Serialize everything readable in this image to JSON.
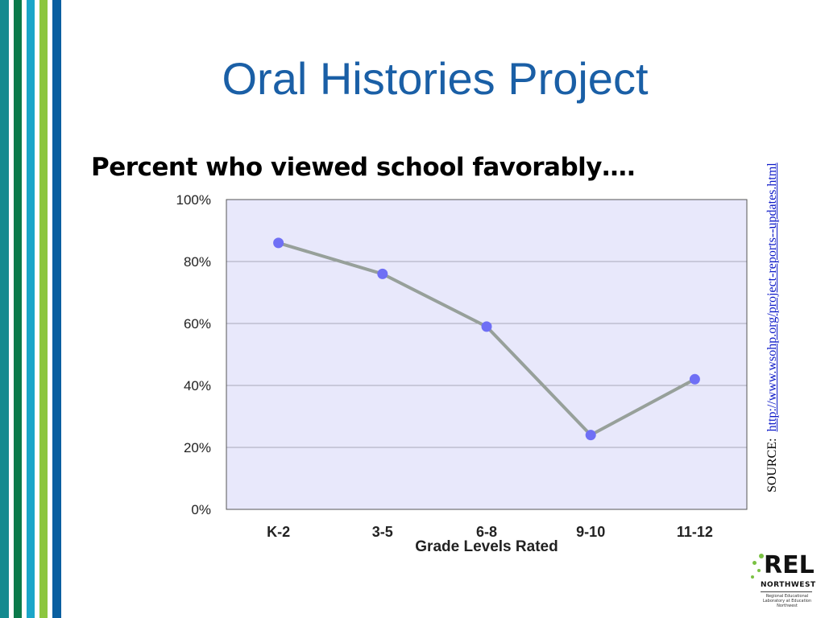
{
  "slide": {
    "title": "Oral Histories Project",
    "subtitle": "Percent who viewed school favorably….",
    "source_prefix": "SOURCE:",
    "source_url": "http://www.wsohp.org/project-reports--updates.html"
  },
  "logo": {
    "word": "REL",
    "sub": "NORTHWEST",
    "tagline": "Regional Educational Laboratory at Education Northwest"
  },
  "stripe_colors": [
    "#148a8f",
    "#ffffff",
    "#0b7a4a",
    "#ffffff",
    "#1ba6c9",
    "#ffffff",
    "#8cc63f",
    "#ffffff",
    "#0a5fa0"
  ],
  "chart_data": {
    "type": "line",
    "categories": [
      "K-2",
      "3-5",
      "6-8",
      "9-10",
      "11-12"
    ],
    "values": [
      86,
      76,
      59,
      24,
      42
    ],
    "xlabel": "Grade Levels Rated",
    "ylabel": "",
    "ylim": [
      0,
      100
    ],
    "yticks": [
      0,
      20,
      40,
      60,
      80,
      100
    ],
    "ytick_labels": [
      "0%",
      "20%",
      "40%",
      "60%",
      "80%",
      "100%"
    ],
    "grid": true,
    "colors": {
      "plot_bg": "#e8e8fb",
      "line": "#97a09a",
      "marker": "#6f6ff5",
      "grid": "#a8a8b8"
    }
  }
}
